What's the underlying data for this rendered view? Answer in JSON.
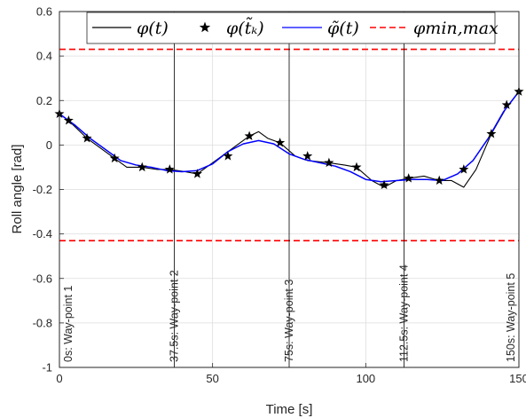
{
  "chart_data": {
    "type": "line",
    "xlabel": "Time [s]",
    "ylabel": "Roll angle [rad]",
    "xlim": [
      0,
      150
    ],
    "ylim": [
      -1,
      0.6
    ],
    "xticks": [
      0,
      50,
      100,
      150
    ],
    "yticks": [
      0.6,
      0.4,
      0.2,
      0,
      -0.2,
      -0.4,
      -0.6,
      -0.8,
      -1
    ],
    "grid": true,
    "legend_position": "top",
    "series": [
      {
        "name": "φ(t)",
        "style": "solid",
        "color": "#000000",
        "x": [
          0,
          3,
          9,
          18,
          22,
          27,
          32,
          36,
          41,
          45,
          53,
          62,
          65,
          68,
          72,
          77,
          81,
          88,
          93,
          97,
          102,
          106,
          110,
          114,
          119,
          124,
          128,
          132,
          136,
          141,
          146,
          150
        ],
        "y": [
          0.14,
          0.11,
          0.03,
          -0.06,
          -0.1,
          -0.1,
          -0.11,
          -0.11,
          -0.12,
          -0.13,
          -0.05,
          0.04,
          0.06,
          0.03,
          0.01,
          -0.05,
          -0.07,
          -0.08,
          -0.09,
          -0.1,
          -0.16,
          -0.19,
          -0.16,
          -0.15,
          -0.14,
          -0.16,
          -0.16,
          -0.19,
          -0.11,
          0.05,
          0.17,
          0.24
        ]
      },
      {
        "name": "φ(t̃ₖ)",
        "style": "star-markers",
        "color": "#000000",
        "x": [
          0,
          3,
          9,
          18,
          27,
          36,
          45,
          55,
          62,
          72,
          81,
          88,
          97,
          106,
          114,
          124,
          132,
          141,
          146,
          150
        ],
        "y": [
          0.14,
          0.11,
          0.03,
          -0.06,
          -0.1,
          -0.11,
          -0.13,
          -0.05,
          0.04,
          0.01,
          -0.05,
          -0.08,
          -0.1,
          -0.18,
          -0.15,
          -0.16,
          -0.11,
          0.05,
          0.18,
          0.24
        ]
      },
      {
        "name": "φ̃(t)",
        "style": "solid",
        "color": "#0000ff",
        "x": [
          0,
          5,
          10,
          15,
          20,
          25,
          30,
          35,
          40,
          45,
          50,
          55,
          60,
          65,
          70,
          75,
          80,
          85,
          90,
          95,
          100,
          105,
          110,
          115,
          120,
          125,
          130,
          135,
          140,
          145,
          150
        ],
        "y": [
          0.14,
          0.09,
          0.03,
          -0.02,
          -0.07,
          -0.09,
          -0.1,
          -0.115,
          -0.12,
          -0.115,
          -0.085,
          -0.03,
          0.005,
          0.02,
          0.005,
          -0.04,
          -0.065,
          -0.08,
          -0.095,
          -0.12,
          -0.155,
          -0.165,
          -0.16,
          -0.155,
          -0.155,
          -0.16,
          -0.13,
          -0.07,
          0.03,
          0.15,
          0.24
        ]
      },
      {
        "name": "φmin,max",
        "style": "dashed",
        "color": "#ff0000",
        "hlines": [
          0.43,
          -0.43
        ]
      }
    ],
    "waypoints": [
      {
        "x": 0,
        "label": "0s: Way-point 1"
      },
      {
        "x": 37.5,
        "label": "37.5s: Way-point 2"
      },
      {
        "x": 75,
        "label": "75s: Way-point 3"
      },
      {
        "x": 112.5,
        "label": "112.5s: Way-point 4"
      },
      {
        "x": 150,
        "label": "150s: Way-point 5"
      }
    ]
  }
}
